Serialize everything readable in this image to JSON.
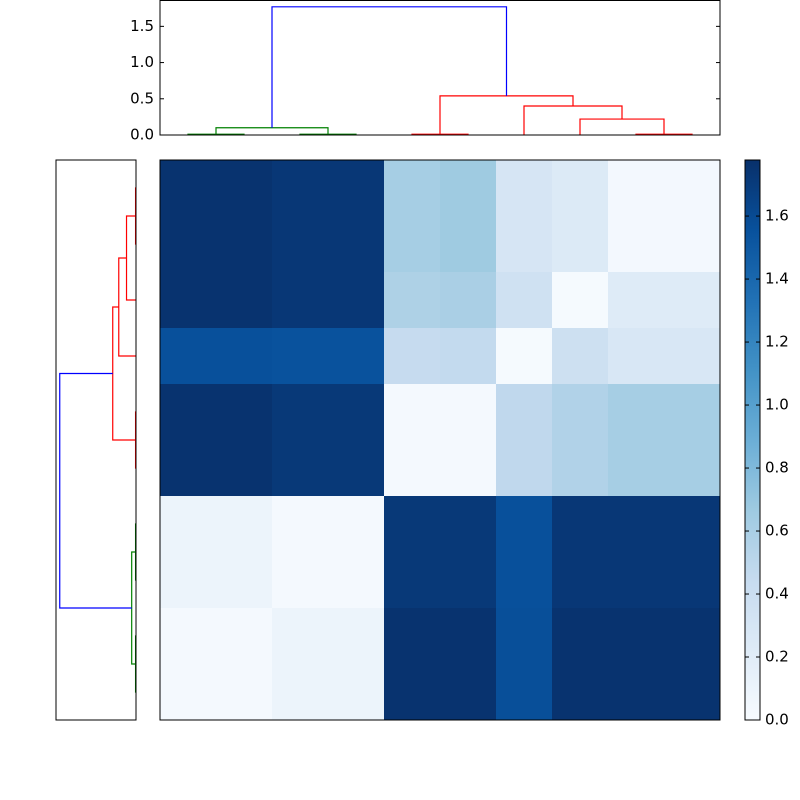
{
  "chart_data": [
    {
      "type": "dendrogram",
      "orientation": "top",
      "xlim": [
        0,
        100
      ],
      "ylim": [
        0,
        1.857
      ],
      "yticks": [
        {
          "value": 0,
          "label": "0.0"
        },
        0.5,
        {
          "value": 1,
          "label": "1.0"
        },
        1.5
      ],
      "links": [
        {
          "color": "#008000",
          "icoord": [
            5,
            5,
            15,
            15
          ],
          "dcoord": [
            0,
            0.01,
            0.01,
            0
          ]
        },
        {
          "color": "#008000",
          "icoord": [
            25,
            25,
            35,
            35
          ],
          "dcoord": [
            0,
            0.01,
            0.01,
            0
          ]
        },
        {
          "color": "#008000",
          "icoord": [
            10,
            10,
            30,
            30
          ],
          "dcoord": [
            0.01,
            0.1,
            0.1,
            0.01
          ]
        },
        {
          "color": "#ff0000",
          "icoord": [
            45,
            45,
            55,
            55
          ],
          "dcoord": [
            0,
            0.01,
            0.01,
            0
          ]
        },
        {
          "color": "#ff0000",
          "icoord": [
            85,
            85,
            95,
            95
          ],
          "dcoord": [
            0,
            0.01,
            0.01,
            0
          ]
        },
        {
          "color": "#ff0000",
          "icoord": [
            75,
            75,
            90,
            90
          ],
          "dcoord": [
            0,
            0.22,
            0.22,
            0.01
          ]
        },
        {
          "color": "#ff0000",
          "icoord": [
            65,
            65,
            82.5,
            82.5
          ],
          "dcoord": [
            0,
            0.4,
            0.4,
            0.22
          ]
        },
        {
          "color": "#ff0000",
          "icoord": [
            50,
            50,
            73.75,
            73.75
          ],
          "dcoord": [
            0.01,
            0.54,
            0.54,
            0.4
          ]
        },
        {
          "color": "#0000ff",
          "icoord": [
            20,
            20,
            61.875,
            61.875
          ],
          "dcoord": [
            0.1,
            1.77,
            1.77,
            0.54
          ]
        }
      ]
    },
    {
      "type": "dendrogram",
      "orientation": "left",
      "xlim": [
        1.857,
        0
      ],
      "ylim": [
        0,
        100
      ],
      "links": [
        {
          "color": "#008000",
          "icoord": [
            5,
            5,
            15,
            15
          ],
          "dcoord": [
            0,
            0.01,
            0.01,
            0
          ]
        },
        {
          "color": "#008000",
          "icoord": [
            25,
            25,
            35,
            35
          ],
          "dcoord": [
            0,
            0.01,
            0.01,
            0
          ]
        },
        {
          "color": "#008000",
          "icoord": [
            10,
            10,
            30,
            30
          ],
          "dcoord": [
            0.01,
            0.1,
            0.1,
            0.01
          ]
        },
        {
          "color": "#ff0000",
          "icoord": [
            45,
            45,
            55,
            55
          ],
          "dcoord": [
            0,
            0.01,
            0.01,
            0
          ]
        },
        {
          "color": "#ff0000",
          "icoord": [
            85,
            85,
            95,
            95
          ],
          "dcoord": [
            0,
            0.01,
            0.01,
            0
          ]
        },
        {
          "color": "#ff0000",
          "icoord": [
            75,
            75,
            90,
            90
          ],
          "dcoord": [
            0,
            0.22,
            0.22,
            0.01
          ]
        },
        {
          "color": "#ff0000",
          "icoord": [
            65,
            65,
            82.5,
            82.5
          ],
          "dcoord": [
            0,
            0.4,
            0.4,
            0.22
          ]
        },
        {
          "color": "#ff0000",
          "icoord": [
            50,
            50,
            73.75,
            73.75
          ],
          "dcoord": [
            0.01,
            0.54,
            0.54,
            0.4
          ]
        },
        {
          "color": "#0000ff",
          "icoord": [
            20,
            20,
            61.875,
            61.875
          ],
          "dcoord": [
            0.1,
            1.77,
            1.77,
            0.54
          ]
        }
      ]
    },
    {
      "type": "heatmap",
      "colorscale": [
        "#f7fbff",
        "#deebf7",
        "#c6dbef",
        "#9ecae1",
        "#6baed6",
        "#4292c6",
        "#2171b5",
        "#08519c",
        "#08306b"
      ],
      "zlim": [
        0,
        1.778
      ],
      "colorbar_ticks": [
        {
          "value": 0,
          "label": "0.0"
        },
        0.2,
        0.4,
        0.6,
        0.8,
        {
          "value": 1,
          "label": "1.0"
        },
        1.2,
        1.4,
        1.6
      ],
      "z": [
        [
          1.76,
          1.76,
          1.73,
          1.73,
          0.62,
          0.66,
          0.3,
          0.24,
          0.04,
          0.04
        ],
        [
          1.76,
          1.76,
          1.73,
          1.73,
          0.62,
          0.66,
          0.3,
          0.24,
          0.04,
          0.04
        ],
        [
          1.76,
          1.76,
          1.73,
          1.73,
          0.58,
          0.6,
          0.36,
          0.02,
          0.22,
          0.22
        ],
        [
          1.56,
          1.56,
          1.55,
          1.55,
          0.44,
          0.46,
          0.02,
          0.38,
          0.28,
          0.28
        ],
        [
          1.76,
          1.76,
          1.72,
          1.72,
          0.03,
          0.03,
          0.48,
          0.56,
          0.62,
          0.62
        ],
        [
          1.76,
          1.76,
          1.72,
          1.72,
          0.03,
          0.03,
          0.48,
          0.56,
          0.62,
          0.62
        ],
        [
          0.1,
          0.1,
          0.03,
          0.03,
          1.72,
          1.72,
          1.56,
          1.73,
          1.73,
          1.73
        ],
        [
          0.1,
          0.1,
          0.03,
          0.03,
          1.72,
          1.72,
          1.56,
          1.73,
          1.73,
          1.73
        ],
        [
          0.03,
          0.03,
          0.1,
          0.1,
          1.76,
          1.76,
          1.57,
          1.76,
          1.76,
          1.76
        ],
        [
          0.03,
          0.03,
          0.1,
          0.1,
          1.76,
          1.76,
          1.57,
          1.76,
          1.76,
          1.76
        ]
      ]
    }
  ]
}
